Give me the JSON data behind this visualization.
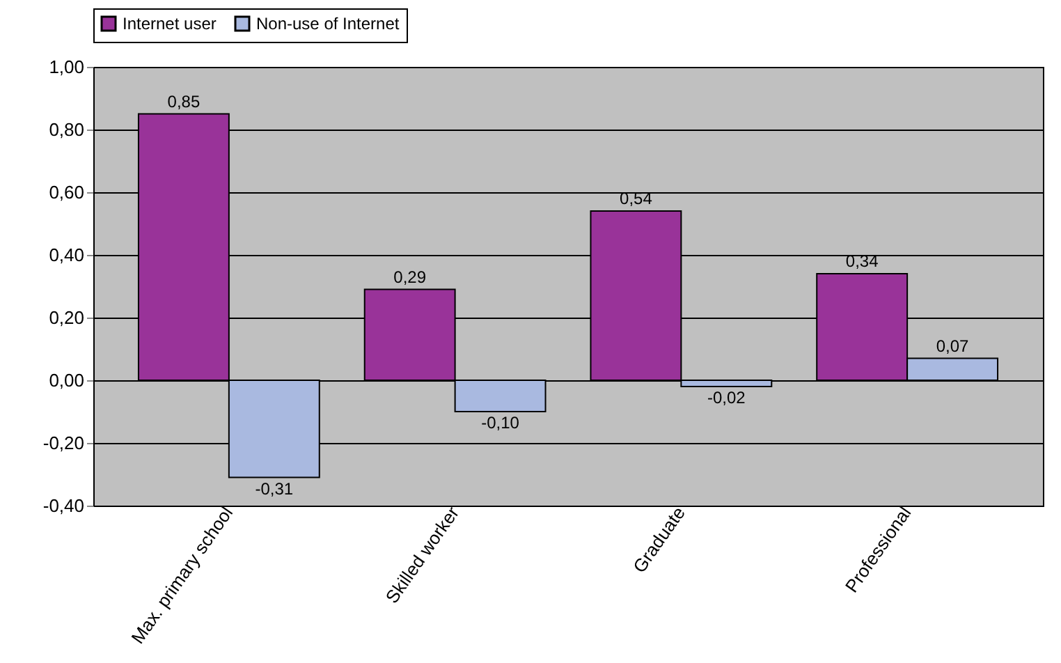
{
  "chart_data": {
    "type": "bar",
    "categories": [
      "Max. primary school",
      "Skilled worker",
      "Graduate",
      "Professional"
    ],
    "series": [
      {
        "name": "Internet user",
        "color": "#993399",
        "values": [
          0.85,
          0.29,
          0.54,
          0.34
        ],
        "value_labels": [
          "0,85",
          "0,29",
          "0,54",
          "0,34"
        ]
      },
      {
        "name": "Non-use of Internet",
        "color": "#a9b9e0",
        "values": [
          -0.31,
          -0.1,
          -0.02,
          0.07
        ],
        "value_labels": [
          "-0,31",
          "-0,10",
          "-0,02",
          "0,07"
        ]
      }
    ],
    "ylim": [
      -0.4,
      1.0
    ],
    "yticks": [
      {
        "value": -0.4,
        "label": "-0,40"
      },
      {
        "value": -0.2,
        "label": "-0,20"
      },
      {
        "value": 0,
        "label": "0,00"
      },
      {
        "value": 0.2,
        "label": "0,20"
      },
      {
        "value": 0.4,
        "label": "0,40"
      },
      {
        "value": 0.6,
        "label": "0,60"
      },
      {
        "value": 0.8,
        "label": "0,80"
      },
      {
        "value": 1.0,
        "label": "1,00"
      }
    ],
    "grid": "y",
    "legend": "top"
  }
}
